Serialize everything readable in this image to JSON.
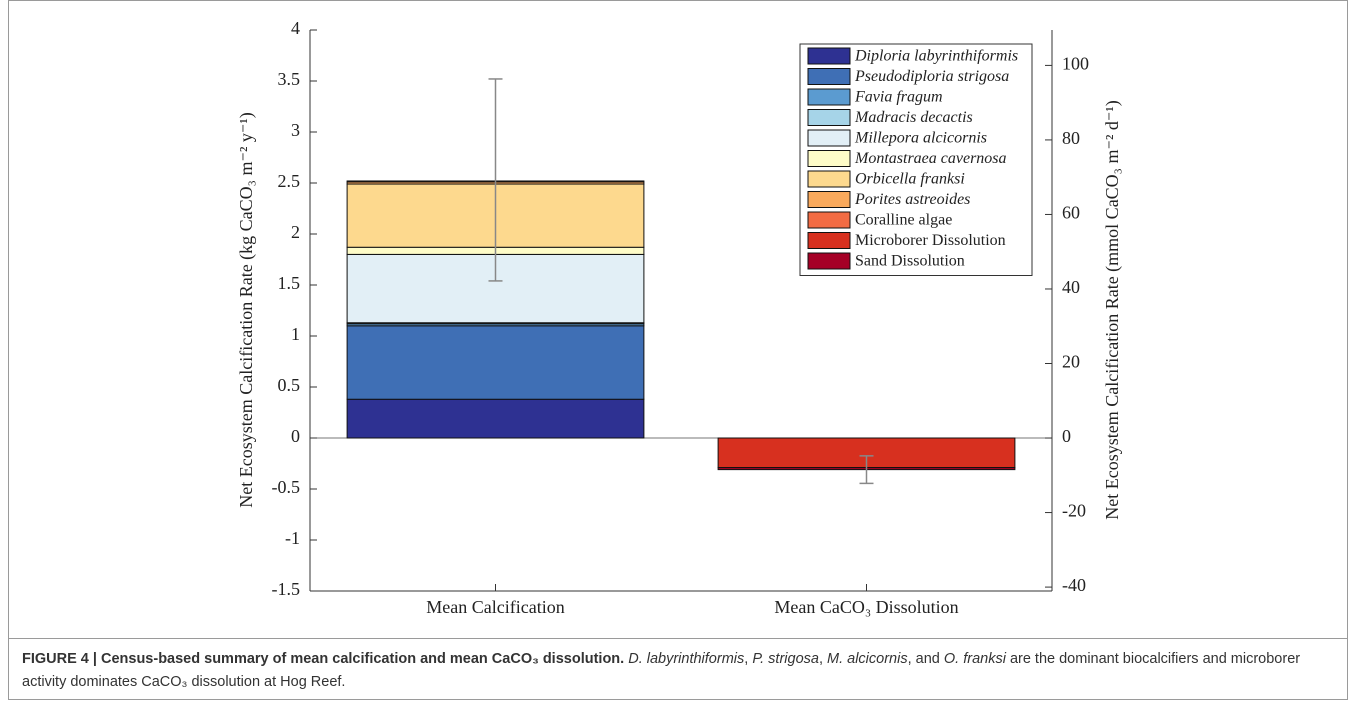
{
  "chart_data": {
    "type": "stacked-bar",
    "categories": [
      "Mean Calcification",
      "Mean CaCO₃ Dissolution"
    ],
    "ylabel": "Net Ecosystem Calcification Rate (kg CaCO₃ m⁻² y⁻¹)",
    "y2label": "Net Ecosystem Calcification Rate (mmol CaCO₃ m⁻² d⁻¹)",
    "ylim": [
      -1.5,
      4
    ],
    "yticks": [
      -1.5,
      -1,
      -0.5,
      0,
      0.5,
      1,
      1.5,
      2,
      2.5,
      3,
      3.5,
      4
    ],
    "y2lim": [
      -41.05,
      109.5
    ],
    "y2ticks": [
      -40,
      -20,
      0,
      20,
      40,
      60,
      80,
      100
    ],
    "series": [
      {
        "name": "Diploria labyrinthiformis",
        "color": "#2e3192",
        "italic": true,
        "values": [
          0.38,
          null
        ]
      },
      {
        "name": "Pseudodiploria strigosa",
        "color": "#3f6fb5",
        "italic": true,
        "values": [
          0.72,
          null
        ]
      },
      {
        "name": "Favia fragum",
        "color": "#5b9bd0",
        "italic": true,
        "values": [
          0.02,
          null
        ]
      },
      {
        "name": "Madracis decactis",
        "color": "#a6d4e8",
        "italic": true,
        "values": [
          0.01,
          null
        ]
      },
      {
        "name": "Millepora alcicornis",
        "color": "#e2eff6",
        "italic": true,
        "values": [
          0.67,
          null
        ]
      },
      {
        "name": "Montastraea cavernosa",
        "color": "#fefcc8",
        "italic": true,
        "values": [
          0.07,
          null
        ]
      },
      {
        "name": "Orbicella franksi",
        "color": "#fdd98e",
        "italic": true,
        "values": [
          0.62,
          null
        ]
      },
      {
        "name": "Porites astreoides",
        "color": "#f9a95c",
        "italic": true,
        "values": [
          0.02,
          null
        ]
      },
      {
        "name": "Coralline algae",
        "color": "#f26b43",
        "italic": false,
        "values": [
          0.01,
          null
        ]
      },
      {
        "name": "Microborer Dissolution",
        "color": "#d7301f",
        "italic": false,
        "values": [
          null,
          -0.29
        ]
      },
      {
        "name": "Sand Dissolution",
        "color": "#a50026",
        "italic": false,
        "values": [
          null,
          -0.02
        ]
      }
    ],
    "error_bars": [
      {
        "center": 2.53,
        "error": 0.99
      },
      {
        "center": -0.31,
        "error": 0.135
      }
    ]
  },
  "caption": {
    "parts": [
      "FIGURE 4 | Census-based summary of mean calcification and mean CaCO₃ dissolution.",
      " D. labyrinthiformis",
      ", ",
      "P. strigosa",
      ", ",
      "M. alcicornis",
      ", and ",
      "O. franksi",
      " are the dominant biocalcifiers and microborer activity dominates CaCO₃ dissolution at Hog Reef."
    ]
  }
}
